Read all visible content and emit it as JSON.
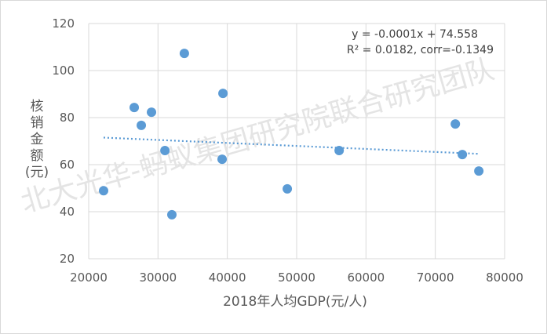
{
  "chart_data": {
    "type": "scatter",
    "title": "",
    "xlabel": "2018年人均GDP(元/人)",
    "ylabel": "核销金额(元)",
    "xlim": [
      20000,
      80000
    ],
    "ylim": [
      20,
      120
    ],
    "xticks": [
      20000,
      30000,
      40000,
      50000,
      60000,
      70000,
      80000
    ],
    "yticks": [
      20,
      40,
      60,
      80,
      100,
      120
    ],
    "grid": true,
    "point_color": "#5b9bd5",
    "points": [
      [
        22150,
        48.9
      ],
      [
        26570,
        84.3
      ],
      [
        29060,
        82.3
      ],
      [
        27590,
        76.7
      ],
      [
        31000,
        66
      ],
      [
        32000,
        38.7
      ],
      [
        33800,
        107.3
      ],
      [
        39370,
        90.3
      ],
      [
        39250,
        62.3
      ],
      [
        48650,
        49.7
      ],
      [
        56130,
        66
      ],
      [
        72890,
        77.3
      ],
      [
        73900,
        64.3
      ],
      [
        76280,
        57.3
      ]
    ],
    "trendline": {
      "style": "dotted",
      "points": [
        [
          22150,
          71.5
        ],
        [
          76280,
          64.6
        ]
      ]
    },
    "annotations": [
      "y = -0.0001x + 74.558",
      "R² = 0.0182, corr=-0.1349"
    ],
    "watermark": "北大光华-蚂蚁集团研究院联合研究团队"
  }
}
